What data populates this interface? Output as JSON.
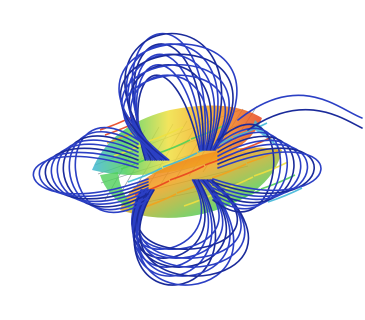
{
  "figure": {
    "subject": "magnetic-field-line-visualization",
    "colors": {
      "background": "#ffffff",
      "field_lines": "#2b3fc4",
      "field_lines_dark": "#1a2a9a",
      "mesh": "#9aa3a8",
      "core_hot": "#e8431e",
      "core_warm": "#f2a21c",
      "core_mid": "#f0e040",
      "core_cool": "#4fcf5a",
      "core_cold": "#3fb6d8"
    }
  }
}
